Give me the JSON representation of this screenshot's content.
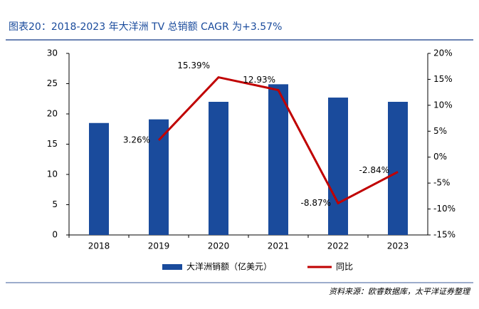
{
  "chart_data": {
    "type": "bar-line",
    "title": "图表20：2018-2023 年大洋洲 TV 总销额 CAGR 为+3.57%",
    "source": "资料来源：欧睿数据库，太平洋证券整理",
    "categories": [
      "2018",
      "2019",
      "2020",
      "2021",
      "2022",
      "2023"
    ],
    "series": [
      {
        "name": "大洋洲销额（亿美元）",
        "type": "bar",
        "color": "#1a4b9c",
        "values": [
          18.5,
          19.1,
          22.0,
          24.9,
          22.7,
          22.0
        ]
      },
      {
        "name": "同比",
        "type": "line",
        "axis": "y2",
        "color": "#c00000",
        "values": [
          null,
          3.26,
          15.39,
          12.93,
          -8.87,
          -2.84
        ],
        "value_labels": [
          null,
          "3.26%",
          "15.39%",
          "12.93%",
          "-8.87%",
          "-2.84%"
        ]
      }
    ],
    "ylim": [
      0,
      30
    ],
    "yticks": [
      0,
      5,
      10,
      15,
      20,
      25,
      30
    ],
    "y2lim": [
      -15,
      20
    ],
    "y2ticks": [
      {
        "value": -15,
        "label": "-15%"
      },
      {
        "value": -10,
        "label": "-10%"
      },
      {
        "value": -5,
        "label": "-5%"
      },
      {
        "value": 0,
        "label": "0%"
      },
      {
        "value": 5,
        "label": "5%"
      },
      {
        "value": 10,
        "label": "10%"
      },
      {
        "value": 15,
        "label": "15%"
      },
      {
        "value": 20,
        "label": "20%"
      }
    ]
  }
}
